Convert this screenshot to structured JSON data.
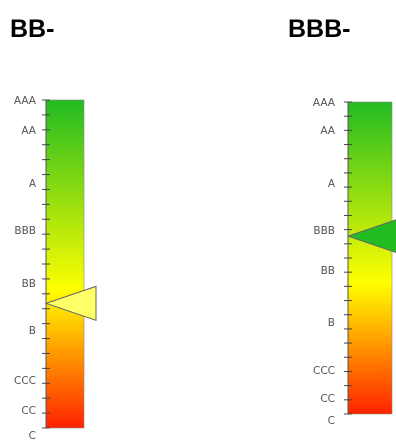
{
  "gauges": [
    {
      "title": "BB-",
      "labels": [
        "AAA",
        "AA",
        "A",
        "BBB",
        "BB",
        "B",
        "CCC",
        "CC",
        "C"
      ],
      "pointer_rating": "BB-",
      "pointer_level": 0.38,
      "pointer_color": "#ffff66",
      "pointer_side": "right",
      "bar_colors": [
        "#22bb22",
        "#ffff00",
        "#ff2200"
      ]
    },
    {
      "title": "BBB-",
      "labels": [
        "AAA",
        "AA",
        "A",
        "BBB",
        "BB",
        "B",
        "CCC",
        "CC",
        "C"
      ],
      "pointer_rating": "BBB-",
      "pointer_level": 0.57,
      "pointer_color": "#22bb22",
      "pointer_side": "right",
      "bar_colors": [
        "#22bb22",
        "#ffff00",
        "#ff2200"
      ]
    }
  ]
}
